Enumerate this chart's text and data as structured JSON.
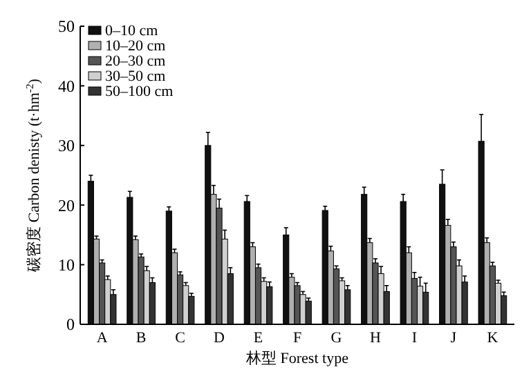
{
  "chart_data": {
    "type": "bar",
    "xlabel": "林型 Forest type",
    "ylabel": "碳密度 Carbon denisty (t·hm$^{-2}$)",
    "categories": [
      "A",
      "B",
      "C",
      "D",
      "E",
      "F",
      "G",
      "H",
      "I",
      "J",
      "K"
    ],
    "ylim": [
      0,
      50
    ],
    "yticks": [
      0,
      10,
      20,
      30,
      40,
      50
    ],
    "grid": false,
    "legend": "top left",
    "series": [
      {
        "name": "0–10 cm",
        "color": "#111111",
        "values": [
          24,
          21.3,
          19,
          30,
          20.6,
          15,
          19.1,
          21.8,
          20.6,
          23.5,
          30.7
        ],
        "errors": [
          1,
          1,
          0.7,
          2.2,
          1,
          1.2,
          0.7,
          1.2,
          1.2,
          2.4,
          4.5
        ]
      },
      {
        "name": "10–20 cm",
        "color": "#b0b0b0",
        "values": [
          14.3,
          14.2,
          12,
          21.8,
          13,
          7.9,
          12.3,
          13.7,
          12,
          16.6,
          13.7
        ],
        "errors": [
          0.5,
          0.6,
          0.6,
          1.5,
          0.7,
          0.6,
          0.8,
          0.7,
          1,
          1,
          0.8
        ]
      },
      {
        "name": "20–30 cm",
        "color": "#555555",
        "values": [
          10.3,
          11.3,
          8.3,
          19.5,
          9.5,
          6.5,
          9.3,
          10.3,
          7.7,
          13,
          9.8
        ],
        "errors": [
          0.5,
          0.5,
          0.5,
          1.5,
          0.6,
          0.5,
          0.5,
          0.7,
          1,
          0.8,
          0.6
        ]
      },
      {
        "name": "30–50 cm",
        "color": "#d0d0d0",
        "values": [
          7.5,
          9,
          6.5,
          14.3,
          7.2,
          5,
          7.3,
          8.5,
          6.4,
          9.8,
          6.9
        ],
        "errors": [
          0.6,
          0.7,
          0.5,
          1.5,
          0.6,
          0.5,
          0.5,
          1.2,
          1.5,
          1,
          0.5
        ]
      },
      {
        "name": "50–100 cm",
        "color": "#333333",
        "values": [
          5,
          7,
          4.7,
          8.5,
          6.3,
          3.9,
          5.8,
          5.5,
          5.4,
          7.1,
          4.8
        ],
        "errors": [
          0.8,
          0.8,
          0.5,
          1,
          0.8,
          0.5,
          0.7,
          1,
          1.5,
          1,
          0.6
        ]
      }
    ]
  }
}
